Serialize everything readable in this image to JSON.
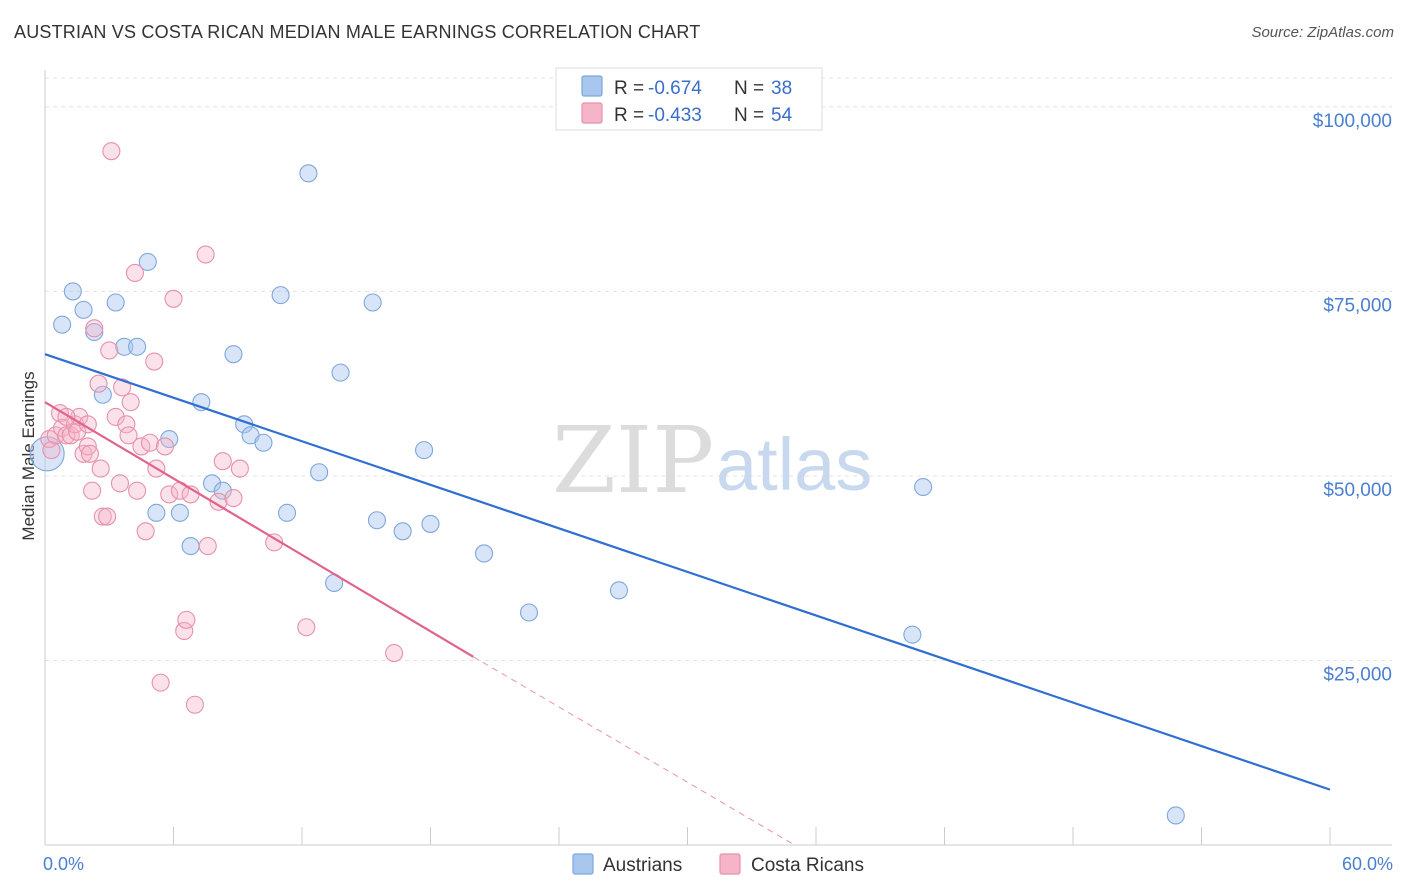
{
  "title": "AUSTRIAN VS COSTA RICAN MEDIAN MALE EARNINGS CORRELATION CHART",
  "source": "Source: ZipAtlas.com",
  "watermark": {
    "zip": "ZIP",
    "atlas": "atlas"
  },
  "legend_top": {
    "rows": [
      {
        "r_label": "R =",
        "r_value": "-0.674",
        "n_label": "N =",
        "n_value": "38",
        "color": "#a9c6ef"
      },
      {
        "r_label": "R =",
        "r_value": "-0.433",
        "n_label": "N =",
        "n_value": "54",
        "color": "#f5b4c8"
      }
    ]
  },
  "legend_bottom": {
    "items": [
      {
        "label": "Austrians",
        "color": "#a9c6ef"
      },
      {
        "label": "Costa Ricans",
        "color": "#f5b4c8"
      }
    ]
  },
  "chart_data": {
    "type": "scatter",
    "title": "AUSTRIAN VS COSTA RICAN MEDIAN MALE EARNINGS CORRELATION CHART",
    "xlabel": "",
    "ylabel": "Median Male Earnings",
    "xlim": [
      0,
      60
    ],
    "ylim": [
      0,
      105000
    ],
    "x_tick_labels": [
      {
        "value": 0,
        "label": "0.0%"
      },
      {
        "value": 60,
        "label": "60.0%"
      }
    ],
    "y_tick_labels": [
      {
        "value": 25000,
        "label": "$25,000"
      },
      {
        "value": 50000,
        "label": "$50,000"
      },
      {
        "value": 75000,
        "label": "$75,000"
      },
      {
        "value": 100000,
        "label": "$100,000"
      }
    ],
    "grid": true,
    "legend_position": "top-center",
    "series": [
      {
        "name": "Austrians",
        "color": "#a9c6ef",
        "stroke": "#7ea7dc",
        "trend_color": "#2e6fd1",
        "trend": {
          "x0": 0,
          "y0": 66500,
          "x1": 60,
          "y1": 7500
        },
        "points": [
          [
            0.1,
            53000
          ],
          [
            0.8,
            70500
          ],
          [
            1.3,
            75000
          ],
          [
            1.8,
            72500
          ],
          [
            2.3,
            69500
          ],
          [
            2.7,
            61000
          ],
          [
            3.3,
            73500
          ],
          [
            3.7,
            67500
          ],
          [
            4.3,
            67500
          ],
          [
            4.8,
            79000
          ],
          [
            5.2,
            45000
          ],
          [
            5.8,
            55000
          ],
          [
            6.3,
            45000
          ],
          [
            6.8,
            40500
          ],
          [
            7.3,
            60000
          ],
          [
            7.8,
            49000
          ],
          [
            8.3,
            48000
          ],
          [
            8.8,
            66500
          ],
          [
            9.3,
            57000
          ],
          [
            9.6,
            55500
          ],
          [
            10.2,
            54500
          ],
          [
            11.0,
            74500
          ],
          [
            11.3,
            45000
          ],
          [
            12.3,
            91000
          ],
          [
            12.8,
            50500
          ],
          [
            13.5,
            35500
          ],
          [
            13.8,
            64000
          ],
          [
            15.3,
            73500
          ],
          [
            15.5,
            44000
          ],
          [
            16.7,
            42500
          ],
          [
            17.7,
            53500
          ],
          [
            18.0,
            43500
          ],
          [
            20.5,
            39500
          ],
          [
            22.6,
            31500
          ],
          [
            26.8,
            34500
          ],
          [
            40.5,
            28500
          ],
          [
            41.0,
            48500
          ],
          [
            52.8,
            4000
          ]
        ]
      },
      {
        "name": "Costa Ricans",
        "color": "#f5b4c8",
        "stroke": "#e890ab",
        "trend_color": "#e0628d",
        "trend": {
          "x0": 0,
          "y0": 60000,
          "x1": 20,
          "y1": 25500
        },
        "trend_dashed_to": {
          "x": 35,
          "y": 0
        },
        "points": [
          [
            0.2,
            55000
          ],
          [
            0.3,
            53500
          ],
          [
            0.5,
            55500
          ],
          [
            0.7,
            58500
          ],
          [
            0.8,
            56500
          ],
          [
            1.0,
            55500
          ],
          [
            1.2,
            55500
          ],
          [
            1.4,
            57000
          ],
          [
            1.5,
            56000
          ],
          [
            1.6,
            58000
          ],
          [
            1.8,
            53000
          ],
          [
            2.0,
            57000
          ],
          [
            2.0,
            54000
          ],
          [
            2.1,
            53000
          ],
          [
            2.2,
            48000
          ],
          [
            2.3,
            70000
          ],
          [
            2.5,
            62500
          ],
          [
            2.6,
            51000
          ],
          [
            2.7,
            44500
          ],
          [
            2.9,
            44500
          ],
          [
            3.0,
            67000
          ],
          [
            3.3,
            58000
          ],
          [
            3.5,
            49000
          ],
          [
            3.6,
            62000
          ],
          [
            3.8,
            57000
          ],
          [
            3.9,
            55500
          ],
          [
            4.0,
            60000
          ],
          [
            4.2,
            77500
          ],
          [
            4.3,
            48000
          ],
          [
            4.5,
            54000
          ],
          [
            4.7,
            42500
          ],
          [
            4.9,
            54500
          ],
          [
            5.1,
            65500
          ],
          [
            5.2,
            51000
          ],
          [
            5.4,
            22000
          ],
          [
            5.6,
            54000
          ],
          [
            5.8,
            47500
          ],
          [
            6.0,
            74000
          ],
          [
            6.3,
            48000
          ],
          [
            6.5,
            29000
          ],
          [
            6.6,
            30500
          ],
          [
            6.8,
            47500
          ],
          [
            7.0,
            19000
          ],
          [
            7.5,
            80000
          ],
          [
            7.6,
            40500
          ],
          [
            8.1,
            46500
          ],
          [
            8.3,
            52000
          ],
          [
            8.8,
            47000
          ],
          [
            9.1,
            51000
          ],
          [
            10.7,
            41000
          ],
          [
            12.2,
            29500
          ],
          [
            16.3,
            26000
          ],
          [
            3.1,
            94000
          ],
          [
            1.0,
            58000
          ]
        ]
      }
    ]
  }
}
